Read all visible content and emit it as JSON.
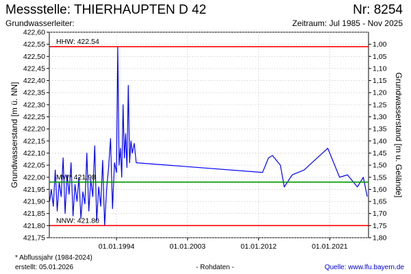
{
  "header": {
    "title": "Messstelle: THIERHAUPTEN D 42",
    "nr": "Nr: 8254",
    "aquifer": "Grundwasserleiter:",
    "period": "Zeitraum: Jul 1985 - Nov 2025"
  },
  "footer": {
    "footnote": "* Abflussjahr (1984-2024)",
    "created": "erstellt:  05.01.2026",
    "raw": "- Rohdaten -",
    "source": "Quelle: www.lfu.bayern.de"
  },
  "colors": {
    "series": "#0000ff",
    "extreme_line": "#ff0000",
    "mean_line": "#009900",
    "grid": "#c8c8c8"
  },
  "chart_data": {
    "type": "line",
    "ylabel": "Grundwasserstand [m ü. NN]",
    "y2label": "Grundwasserstand [m u. Gelände]",
    "ylim": [
      421.75,
      422.6
    ],
    "y2lim": [
      1.8,
      0.95
    ],
    "yticks": [
      "422,60",
      "422,55",
      "422,50",
      "422,45",
      "422,40",
      "422,35",
      "422,30",
      "422,25",
      "422,20",
      "422,15",
      "422,10",
      "422,05",
      "422,00",
      "421,95",
      "421,90",
      "421,85",
      "421,80",
      "421,75"
    ],
    "y2ticks": [
      "1,00",
      "1,05",
      "1,10",
      "1,15",
      "1,20",
      "1,25",
      "1,30",
      "1,35",
      "1,40",
      "1,45",
      "1,50",
      "1,55",
      "1,60",
      "1,65",
      "1,70",
      "1,75",
      "1,80"
    ],
    "xlim": [
      "1985-07-01",
      "2025-11-30"
    ],
    "xticks": [
      {
        "date": "1994-01-01",
        "label": "01.01.1994"
      },
      {
        "date": "2003-01-01",
        "label": "01.01.2003"
      },
      {
        "date": "2012-01-01",
        "label": "01.01.2012"
      },
      {
        "date": "2021-01-01",
        "label": "01.01.2021"
      }
    ],
    "grid": true,
    "reference_lines": [
      {
        "label": "HHW: 422.54",
        "value": 422.54,
        "color": "#ff0000"
      },
      {
        "label": "MW* 421.98",
        "value": 421.98,
        "color": "#009900"
      },
      {
        "label": "NNW: 421.80",
        "value": 421.8,
        "color": "#ff0000"
      }
    ],
    "series": [
      {
        "points": [
          [
            "1985-07-15",
            421.9
          ],
          [
            "1985-10-01",
            421.95
          ],
          [
            "1986-01-01",
            421.88
          ],
          [
            "1986-04-01",
            422.03
          ],
          [
            "1986-07-01",
            421.86
          ],
          [
            "1986-10-01",
            421.98
          ],
          [
            "1987-01-01",
            421.92
          ],
          [
            "1987-04-01",
            422.08
          ],
          [
            "1987-07-01",
            421.85
          ],
          [
            "1987-10-01",
            422.01
          ],
          [
            "1988-01-01",
            421.93
          ],
          [
            "1988-04-01",
            422.06
          ],
          [
            "1988-07-01",
            421.84
          ],
          [
            "1988-10-01",
            421.97
          ],
          [
            "1989-01-01",
            421.9
          ],
          [
            "1989-04-01",
            422.0
          ],
          [
            "1989-07-01",
            421.83
          ],
          [
            "1989-10-01",
            421.94
          ],
          [
            "1990-01-01",
            421.89
          ],
          [
            "1990-04-01",
            422.1
          ],
          [
            "1990-07-01",
            421.86
          ],
          [
            "1990-10-01",
            421.99
          ],
          [
            "1991-01-01",
            421.92
          ],
          [
            "1991-04-01",
            422.13
          ],
          [
            "1991-07-01",
            421.82
          ],
          [
            "1991-10-01",
            421.96
          ],
          [
            "1992-01-01",
            421.88
          ],
          [
            "1992-04-01",
            422.07
          ],
          [
            "1992-07-01",
            421.8
          ],
          [
            "1992-10-01",
            421.95
          ],
          [
            "1993-01-01",
            422.04
          ],
          [
            "1993-04-01",
            422.16
          ],
          [
            "1993-07-01",
            421.87
          ],
          [
            "1993-10-01",
            422.06
          ],
          [
            "1994-01-01",
            422.02
          ],
          [
            "1994-03-01",
            422.54
          ],
          [
            "1994-05-01",
            422.05
          ],
          [
            "1994-07-01",
            422.12
          ],
          [
            "1994-09-01",
            422.0
          ],
          [
            "1994-11-01",
            422.3
          ],
          [
            "1995-01-01",
            422.08
          ],
          [
            "1995-03-01",
            422.18
          ],
          [
            "1995-05-01",
            422.04
          ],
          [
            "1995-07-01",
            422.38
          ],
          [
            "1995-09-01",
            422.06
          ],
          [
            "1995-11-01",
            422.15
          ],
          [
            "1996-01-01",
            422.1
          ],
          [
            "1996-04-01",
            422.14
          ],
          [
            "1996-07-01",
            422.06
          ],
          [
            "2012-07-01",
            422.02
          ],
          [
            "2013-04-01",
            422.08
          ],
          [
            "2013-10-01",
            422.09
          ],
          [
            "2014-10-01",
            422.05
          ],
          [
            "2015-04-01",
            421.96
          ],
          [
            "2016-04-01",
            422.01
          ],
          [
            "2017-10-01",
            422.03
          ],
          [
            "2018-10-01",
            422.06
          ],
          [
            "2020-10-01",
            422.12
          ],
          [
            "2022-04-01",
            422.0
          ],
          [
            "2023-04-01",
            422.01
          ],
          [
            "2024-07-01",
            421.96
          ],
          [
            "2025-04-01",
            422.0
          ],
          [
            "2025-10-01",
            421.92
          ]
        ]
      }
    ]
  }
}
